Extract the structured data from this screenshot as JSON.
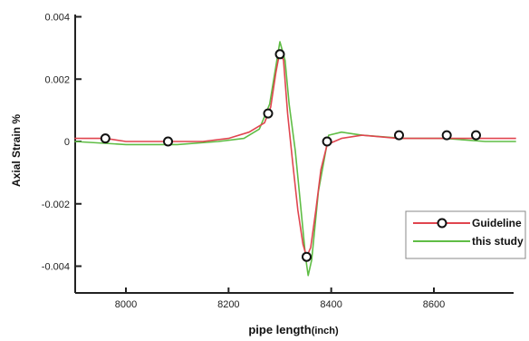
{
  "chart_data": {
    "type": "line",
    "title": "",
    "xlabel_main": "pipe length",
    "xlabel_unit": "(inch)",
    "ylabel": "Axial Strain %",
    "xlim": [
      7900,
      8760
    ],
    "ylim": [
      -0.005,
      0.004
    ],
    "x_ticks": [
      8000,
      8200,
      8400,
      8600
    ],
    "x_tick_labels": [
      "8000",
      "8200",
      "8400",
      "8600"
    ],
    "y_ticks": [
      0.004,
      0.002,
      0,
      -0.002,
      -0.004
    ],
    "y_tick_labels": [
      "0.004",
      "0.002",
      "0",
      "-0.002",
      "-0.004"
    ],
    "grid": false,
    "legend_position": "right",
    "series": [
      {
        "name": "Guideline",
        "color": "#e0454f",
        "marker": "open-circle",
        "x": [
          7900,
          7960,
          8000,
          8080,
          8150,
          8200,
          8240,
          8270,
          8282,
          8292,
          8300,
          8307,
          8315,
          8325,
          8335,
          8345,
          8352,
          8360,
          8370,
          8380,
          8392,
          8420,
          8460,
          8530,
          8600,
          8625,
          8680,
          8760
        ],
        "y": [
          0.0001,
          0.0001,
          0.0,
          0.0,
          0.0,
          0.0001,
          0.0003,
          0.0006,
          0.0011,
          0.0022,
          0.0029,
          0.0026,
          0.0009,
          -0.0007,
          -0.0022,
          -0.0033,
          -0.0037,
          -0.0034,
          -0.0022,
          -0.0009,
          -0.0001,
          0.0001,
          0.0002,
          0.0001,
          0.0001,
          0.0001,
          0.0001,
          0.0001
        ],
        "marker_points": [
          [
            7960,
            0.0001
          ],
          [
            8082,
            0.0
          ],
          [
            8277,
            0.0009
          ],
          [
            8300,
            0.0028
          ],
          [
            8352,
            -0.0037
          ],
          [
            8392,
            0.0
          ],
          [
            8532,
            0.0002
          ],
          [
            8625,
            0.0002
          ],
          [
            8682,
            0.0002
          ]
        ]
      },
      {
        "name": "this study",
        "color": "#5fbd45",
        "x": [
          7900,
          8000,
          8100,
          8180,
          8230,
          8260,
          8280,
          8292,
          8300,
          8310,
          8318,
          8330,
          8340,
          8350,
          8355,
          8362,
          8375,
          8395,
          8420,
          8460,
          8540,
          8620,
          8700,
          8760
        ],
        "y": [
          0.0,
          -0.0001,
          -0.0001,
          0.0,
          0.0001,
          0.0004,
          0.0012,
          0.0024,
          0.0032,
          0.0026,
          0.0012,
          -0.0003,
          -0.002,
          -0.0037,
          -0.0043,
          -0.0038,
          -0.0016,
          0.0002,
          0.0003,
          0.0002,
          0.0001,
          0.0001,
          0.0,
          0.0
        ]
      }
    ],
    "legend": [
      {
        "label": "Guideline",
        "series": 0
      },
      {
        "label": "this study",
        "series": 1
      }
    ]
  }
}
